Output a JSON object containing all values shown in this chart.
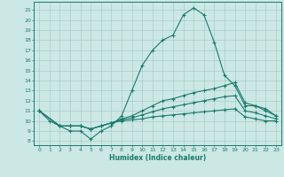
{
  "xlabel": "Humidex (Indice chaleur)",
  "bg_color": "#cce8e4",
  "line_color": "#1a7a6e",
  "grid_color": "#a8ccc8",
  "x_ticks": [
    0,
    1,
    2,
    3,
    4,
    5,
    6,
    7,
    8,
    9,
    10,
    11,
    12,
    13,
    14,
    15,
    16,
    17,
    18,
    19,
    20,
    21,
    22,
    23
  ],
  "y_ticks": [
    8,
    9,
    10,
    11,
    12,
    13,
    14,
    15,
    16,
    17,
    18,
    19,
    20,
    21
  ],
  "ylim": [
    7.6,
    21.8
  ],
  "xlim": [
    -0.5,
    23.5
  ],
  "line1_x": [
    0,
    1,
    2,
    3,
    4,
    5,
    6,
    7,
    8,
    9,
    10,
    11,
    12,
    13,
    14,
    15,
    16,
    17,
    18,
    19,
    20,
    21,
    22,
    23
  ],
  "line1_y": [
    11,
    10,
    9.5,
    9,
    9,
    8.2,
    9,
    9.5,
    10.5,
    13,
    15.5,
    17,
    18,
    18.5,
    20.5,
    21.2,
    20.5,
    17.8,
    14.5,
    13.5,
    11.5,
    11.5,
    11,
    10.5
  ],
  "line2_x": [
    0,
    2,
    3,
    4,
    5,
    6,
    7,
    8,
    9,
    10,
    11,
    12,
    13,
    14,
    15,
    16,
    17,
    18,
    19,
    20,
    21,
    22,
    23
  ],
  "line2_y": [
    11,
    9.5,
    9.5,
    9.5,
    9.2,
    9.5,
    9.8,
    10.2,
    10.5,
    11,
    11.5,
    12,
    12.2,
    12.5,
    12.8,
    13,
    13.2,
    13.5,
    13.8,
    11.8,
    11.5,
    11.2,
    10.5
  ],
  "line3_x": [
    0,
    2,
    3,
    4,
    5,
    6,
    7,
    8,
    9,
    10,
    11,
    12,
    13,
    14,
    15,
    16,
    17,
    18,
    19,
    20,
    21,
    22,
    23
  ],
  "line3_y": [
    11,
    9.5,
    9.5,
    9.5,
    9.2,
    9.5,
    9.8,
    10.1,
    10.3,
    10.6,
    10.9,
    11.2,
    11.4,
    11.6,
    11.8,
    12.0,
    12.2,
    12.4,
    12.5,
    11.0,
    10.8,
    10.5,
    10.2
  ],
  "line4_x": [
    0,
    2,
    3,
    4,
    5,
    6,
    7,
    8,
    9,
    10,
    11,
    12,
    13,
    14,
    15,
    16,
    17,
    18,
    19,
    20,
    21,
    22,
    23
  ],
  "line4_y": [
    11,
    9.5,
    9.5,
    9.5,
    9.2,
    9.5,
    9.8,
    10.0,
    10.1,
    10.2,
    10.4,
    10.5,
    10.6,
    10.7,
    10.8,
    10.9,
    11.0,
    11.1,
    11.2,
    10.4,
    10.2,
    10.0,
    10.0
  ]
}
